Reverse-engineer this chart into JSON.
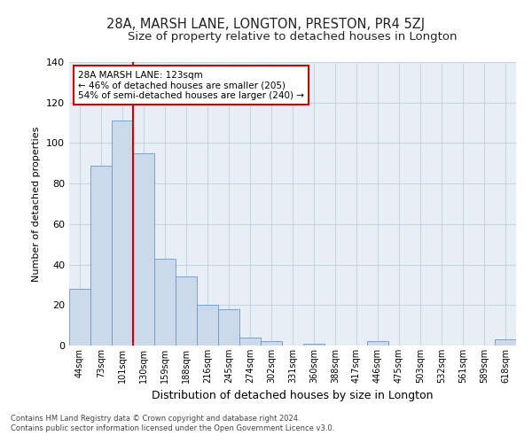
{
  "title": "28A, MARSH LANE, LONGTON, PRESTON, PR4 5ZJ",
  "subtitle": "Size of property relative to detached houses in Longton",
  "xlabel": "Distribution of detached houses by size in Longton",
  "ylabel": "Number of detached properties",
  "categories": [
    "44sqm",
    "73sqm",
    "101sqm",
    "130sqm",
    "159sqm",
    "188sqm",
    "216sqm",
    "245sqm",
    "274sqm",
    "302sqm",
    "331sqm",
    "360sqm",
    "388sqm",
    "417sqm",
    "446sqm",
    "475sqm",
    "503sqm",
    "532sqm",
    "561sqm",
    "589sqm",
    "618sqm"
  ],
  "values": [
    28,
    89,
    111,
    95,
    43,
    34,
    20,
    18,
    4,
    2,
    0,
    1,
    0,
    0,
    2,
    0,
    0,
    0,
    0,
    0,
    3
  ],
  "bar_color": "#ccd9ea",
  "bar_edge_color": "#6699cc",
  "grid_color": "#c8d4e3",
  "background_color": "#e8eef5",
  "vline_color": "#cc0000",
  "annotation_text": "28A MARSH LANE: 123sqm\n← 46% of detached houses are smaller (205)\n54% of semi-detached houses are larger (240) →",
  "annotation_box_color": "#ffffff",
  "annotation_box_edge_color": "#cc0000",
  "footer_text": "Contains HM Land Registry data © Crown copyright and database right 2024.\nContains public sector information licensed under the Open Government Licence v3.0.",
  "ylim": [
    0,
    140
  ],
  "title_fontsize": 10.5,
  "subtitle_fontsize": 9.5,
  "ylabel_fontsize": 8,
  "xlabel_fontsize": 9
}
